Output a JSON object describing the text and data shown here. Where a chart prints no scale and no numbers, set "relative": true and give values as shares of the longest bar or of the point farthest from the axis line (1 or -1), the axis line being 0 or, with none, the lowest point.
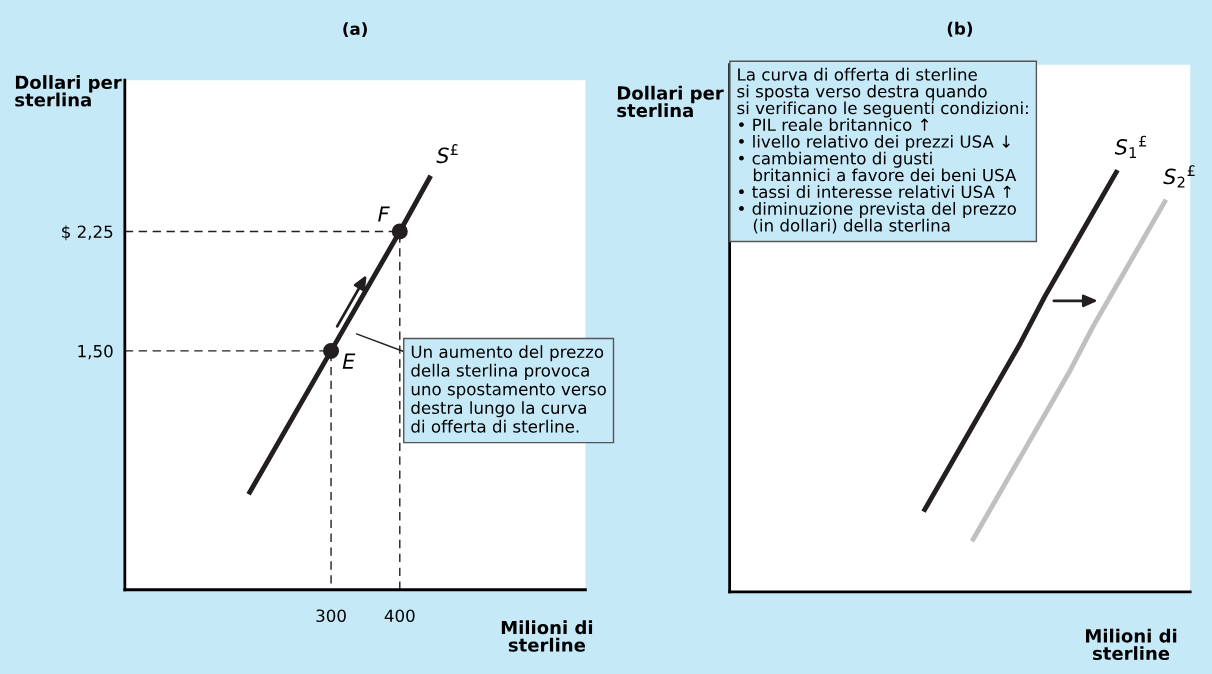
{
  "chart_data": [
    {
      "type": "line",
      "title": "(a)",
      "xlabel": "Milioni di\nsterline",
      "ylabel": "Dollari per\nsterlina",
      "xlim": [
        0,
        670
      ],
      "ylim": [
        0,
        3.2
      ],
      "xticks": [
        300,
        400
      ],
      "yticks": [
        {
          "value": 1.5,
          "label": "1,50"
        },
        {
          "value": 2.25,
          "label": "$ 2,25"
        }
      ],
      "grid": false,
      "legend": false,
      "series": [
        {
          "type": "line",
          "color": "#231f20",
          "x": [
            180,
            300,
            400,
            445
          ],
          "values": [
            0.6,
            1.5,
            2.25,
            2.6
          ]
        },
        {
          "type": "line",
          "color": "#231f20",
          "line_style": "dashed",
          "x": [
            0,
            300,
            300
          ],
          "values": [
            1.5,
            1.5,
            0
          ]
        },
        {
          "type": "line",
          "color": "#231f20",
          "line_style": "dashed",
          "x": [
            0,
            400,
            400
          ],
          "values": [
            2.25,
            2.25,
            0
          ]
        },
        {
          "type": "scatter",
          "color": "#231f20",
          "marker": "circle",
          "x": [
            300,
            400
          ],
          "values": [
            1.5,
            2.25
          ]
        }
      ],
      "annotations": [
        {
          "text": "E",
          "x": 300,
          "y": 1.5
        },
        {
          "text": "F",
          "x": 400,
          "y": 2.25
        },
        {
          "text": "S$^{£}$",
          "x": 445,
          "y": 2.6
        },
        "Un aumento del prezzo\ndella sterlina provoca\nuno spostamento verso\ndestra lungo la curva\ndi offerta di sterline."
      ]
    },
    {
      "type": "line",
      "title": "(b)",
      "xlabel": "Milioni di\nsterline",
      "ylabel": "Dollari per\nsterlina",
      "relative": true,
      "tick_labels": false,
      "grid": false,
      "legend": false,
      "categories": [
        null,
        null,
        null,
        null,
        null,
        null,
        null,
        null,
        null,
        null,
        null,
        null,
        null,
        null,
        null,
        null,
        null,
        null,
        null,
        null
      ],
      "series": [
        {
          "type": "line",
          "color": "#231f20",
          "values": [
            null,
            null,
            null,
            null,
            null,
            null,
            null,
            null,
            0.19,
            0.29,
            0.39,
            0.49,
            0.59,
            0.7,
            0.8,
            0.9,
            1,
            null,
            null,
            null
          ]
        },
        {
          "type": "line",
          "color": "#c0c0c0",
          "values": [
            null,
            null,
            null,
            null,
            null,
            null,
            null,
            null,
            null,
            null,
            0.12,
            0.22,
            0.32,
            0.42,
            0.52,
            0.63,
            0.73,
            0.83,
            0.93,
            null
          ]
        }
      ],
      "annotations": [
        "S$_{1}$$^{£}$",
        "S$_{2}$$^{£}$",
        "La curva di offerta di sterline\nsi sposta verso destra quando\nsi verificano le seguenti condizioni:\n• PIL reale britannico ↑\n• livello relativo dei prezzi USA ↓\n• cambiamento di gusti\n   britannici a favore dei beni USA\n• tassi di interesse relativi USA ↑\n• diminuzione prevista del prezzo\n   (in dollari) della sterlina"
      ]
    }
  ]
}
